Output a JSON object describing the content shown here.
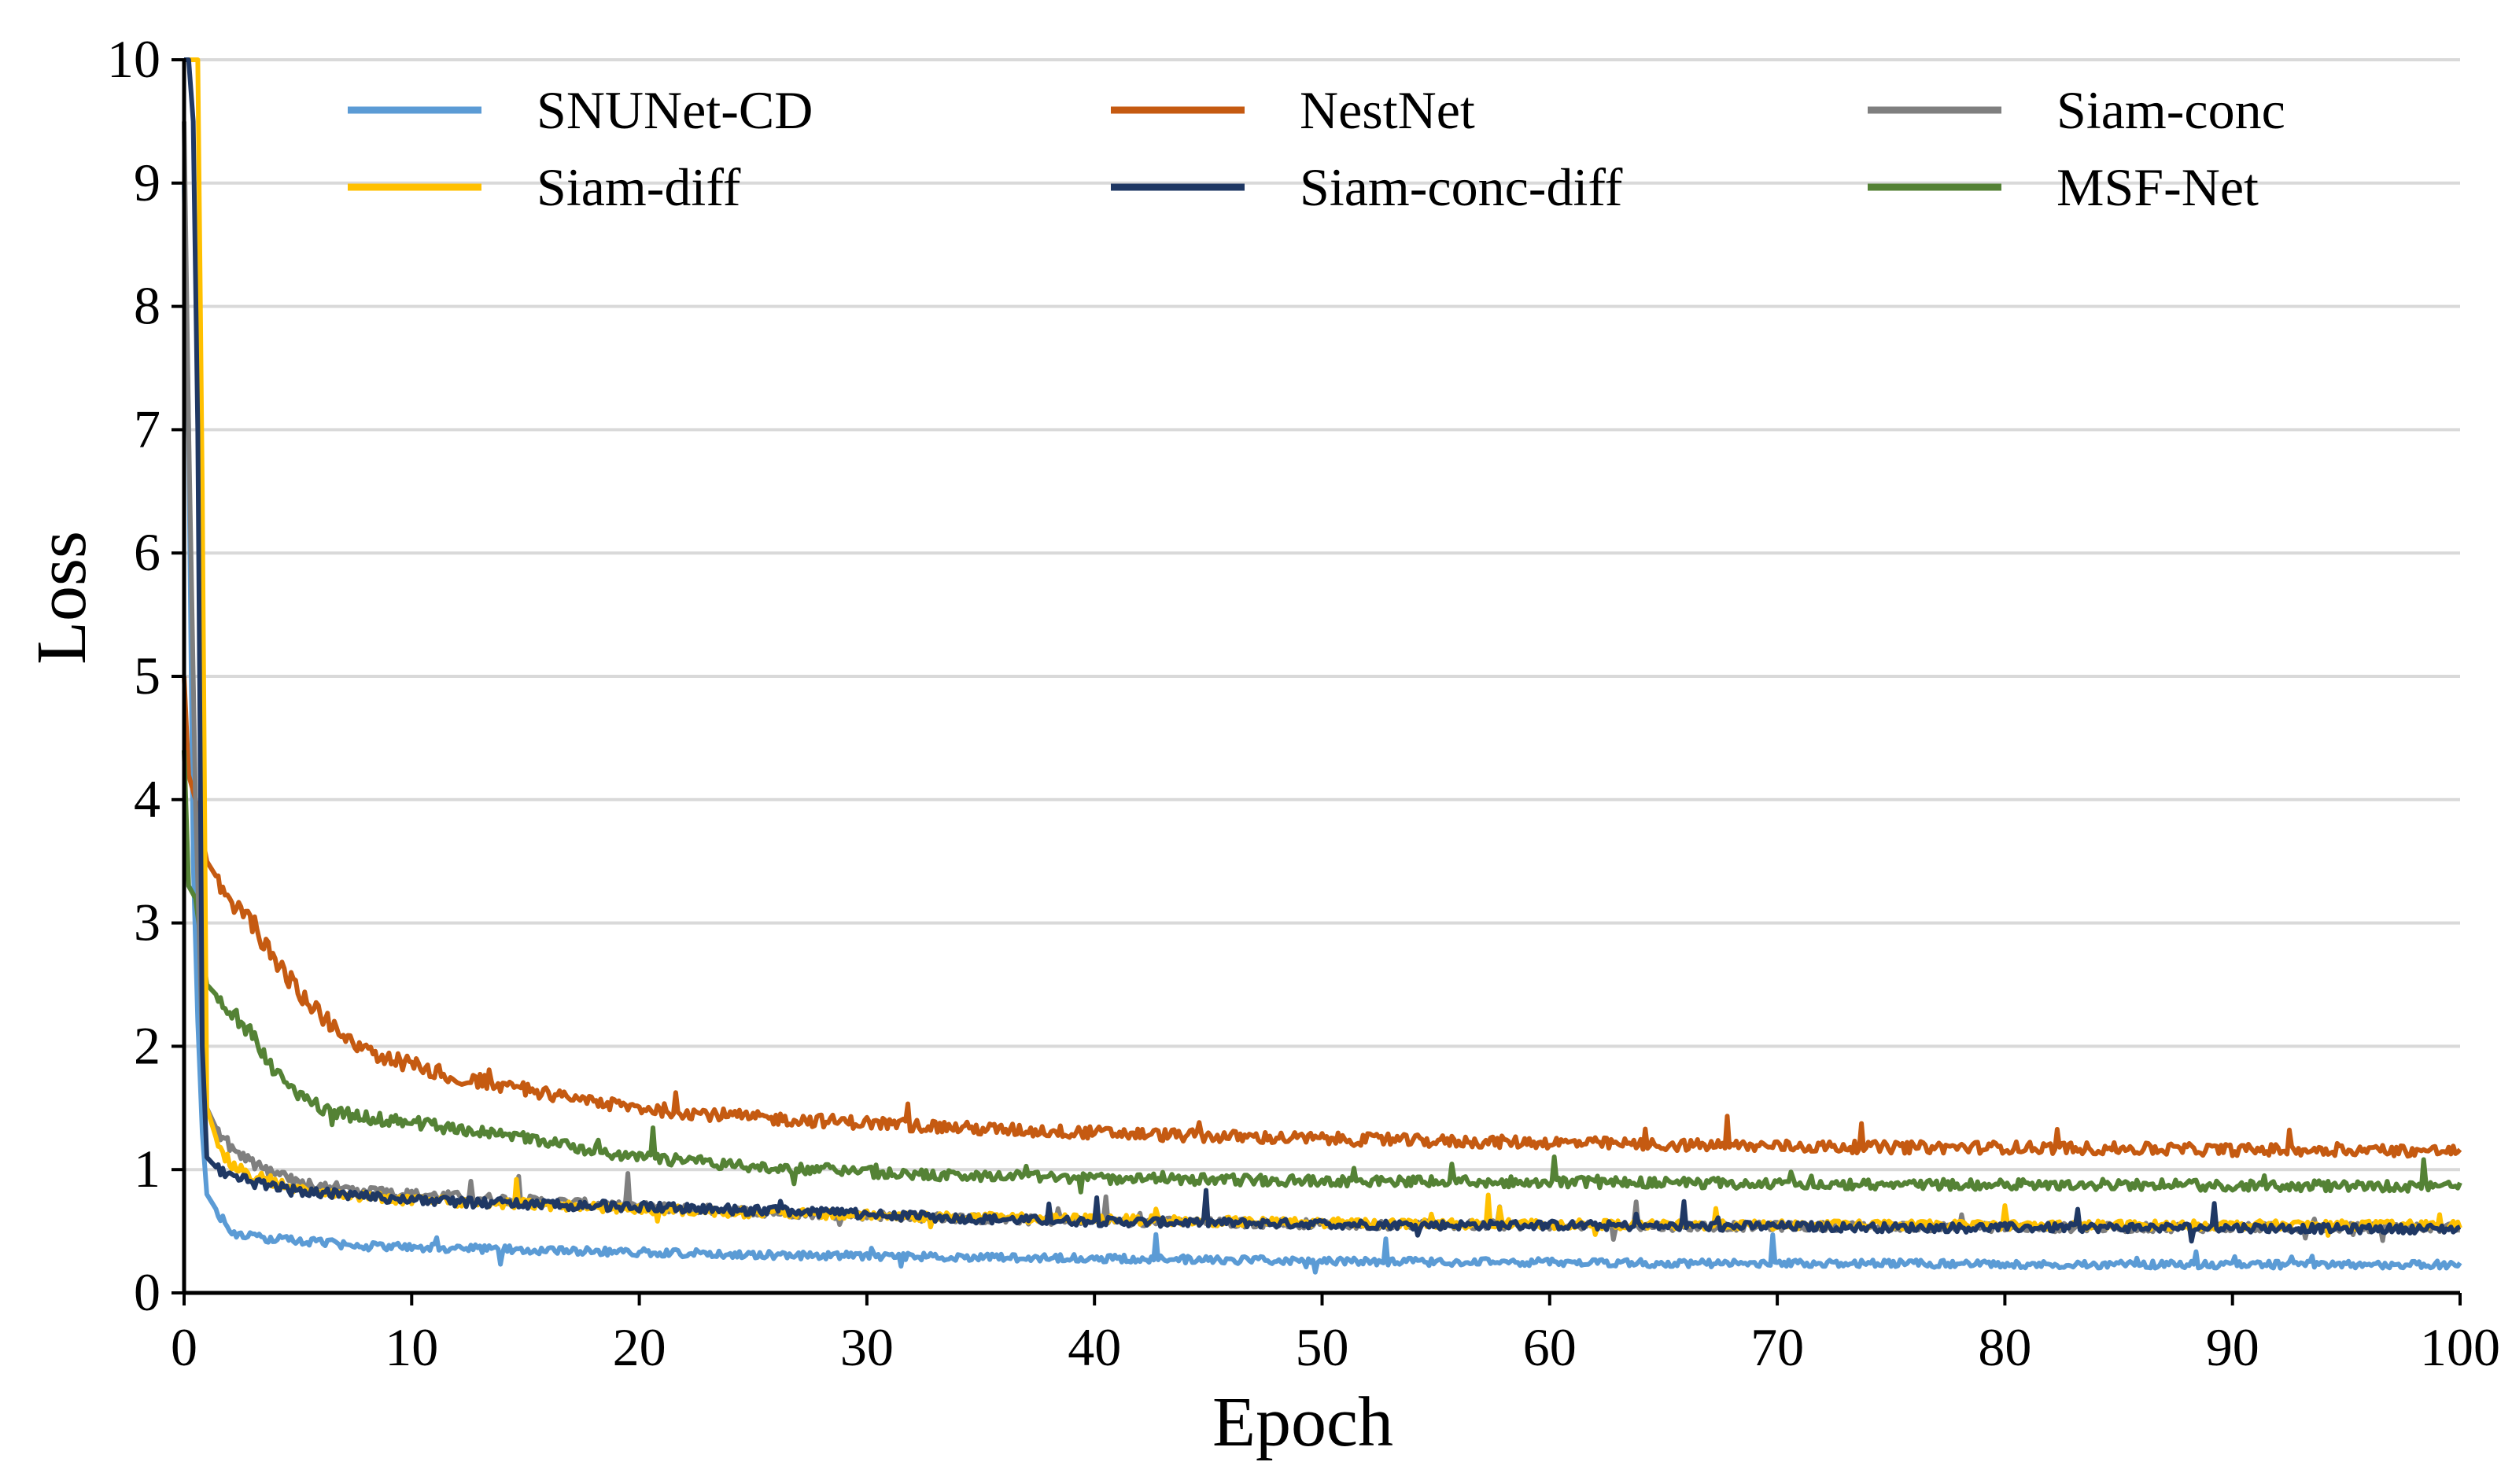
{
  "chart_data": {
    "type": "line",
    "title": "",
    "xlabel": "Epoch",
    "ylabel": "Loss",
    "xlim": [
      0,
      100
    ],
    "ylim": [
      0,
      10
    ],
    "xticks": [
      "0",
      "10",
      "20",
      "30",
      "40",
      "50",
      "60",
      "70",
      "80",
      "90",
      "100"
    ],
    "yticks": [
      "0",
      "1",
      "2",
      "3",
      "4",
      "5",
      "6",
      "7",
      "8",
      "9",
      "10"
    ],
    "grid": "horizontal",
    "legend_position": "top",
    "series": [
      {
        "name": "SNUNet-CD",
        "color": "#5B9BD5",
        "x": [
          0,
          0.2,
          0.4,
          0.6,
          0.8,
          1,
          2,
          3,
          5,
          8,
          10,
          15,
          20,
          25,
          30,
          35,
          40,
          45,
          50,
          55,
          60,
          65,
          70,
          75,
          80,
          85,
          90,
          95,
          100
        ],
        "y": [
          9.0,
          7.0,
          3.5,
          2.2,
          1.3,
          0.8,
          0.5,
          0.45,
          0.42,
          0.38,
          0.37,
          0.35,
          0.33,
          0.31,
          0.3,
          0.29,
          0.28,
          0.27,
          0.26,
          0.25,
          0.25,
          0.24,
          0.24,
          0.24,
          0.23,
          0.23,
          0.23,
          0.23,
          0.23
        ]
      },
      {
        "name": "NestNet",
        "color": "#C55A11",
        "x": [
          0,
          0.2,
          0.5,
          1,
          2,
          3,
          4,
          5,
          6,
          7,
          8,
          10,
          12,
          15,
          20,
          25,
          30,
          35,
          40,
          45,
          50,
          55,
          60,
          65,
          70,
          75,
          80,
          85,
          90,
          95,
          100
        ],
        "y": [
          5.0,
          4.2,
          4.0,
          3.5,
          3.2,
          3.0,
          2.7,
          2.45,
          2.25,
          2.1,
          1.95,
          1.85,
          1.75,
          1.65,
          1.5,
          1.42,
          1.38,
          1.33,
          1.3,
          1.27,
          1.25,
          1.23,
          1.22,
          1.2,
          1.19,
          1.18,
          1.18,
          1.17,
          1.16,
          1.16,
          1.15
        ]
      },
      {
        "name": "Siam-conc",
        "color": "#7F7F7F",
        "x": [
          0,
          0.2,
          0.5,
          0.8,
          1,
          1.5,
          2,
          3,
          5,
          8,
          10,
          15,
          20,
          25,
          30,
          35,
          40,
          45,
          50,
          55,
          60,
          65,
          70,
          75,
          80,
          85,
          90,
          95,
          100
        ],
        "y": [
          9.5,
          7.0,
          4.0,
          2.0,
          1.5,
          1.3,
          1.2,
          1.05,
          0.9,
          0.82,
          0.8,
          0.75,
          0.7,
          0.66,
          0.63,
          0.6,
          0.58,
          0.57,
          0.56,
          0.55,
          0.55,
          0.54,
          0.54,
          0.54,
          0.53,
          0.53,
          0.53,
          0.53,
          0.53
        ]
      },
      {
        "name": "Siam-diff",
        "color": "#FFC000",
        "x": [
          0,
          0.3,
          0.6,
          0.8,
          1,
          1.5,
          2,
          3,
          5,
          8,
          10,
          15,
          20,
          25,
          30,
          35,
          40,
          45,
          50,
          55,
          60,
          65,
          70,
          75,
          80,
          85,
          90,
          95,
          100
        ],
        "y": [
          10.0,
          10.0,
          10.0,
          6.5,
          1.5,
          1.2,
          1.05,
          0.95,
          0.85,
          0.78,
          0.75,
          0.72,
          0.68,
          0.65,
          0.63,
          0.61,
          0.6,
          0.58,
          0.57,
          0.56,
          0.56,
          0.55,
          0.55,
          0.55,
          0.55,
          0.55,
          0.55,
          0.55,
          0.55
        ]
      },
      {
        "name": "Siam-conc-diff",
        "color": "#1F3864",
        "x": [
          0,
          0.2,
          0.4,
          0.6,
          0.8,
          1,
          1.5,
          2,
          3,
          5,
          8,
          10,
          15,
          20,
          25,
          30,
          35,
          40,
          45,
          50,
          55,
          60,
          65,
          70,
          75,
          80,
          85,
          90,
          95,
          100
        ],
        "y": [
          10.0,
          10.0,
          9.5,
          7.0,
          2.0,
          1.1,
          1.0,
          0.95,
          0.9,
          0.82,
          0.78,
          0.75,
          0.72,
          0.7,
          0.67,
          0.64,
          0.6,
          0.58,
          0.57,
          0.56,
          0.55,
          0.55,
          0.54,
          0.54,
          0.53,
          0.53,
          0.53,
          0.53,
          0.52,
          0.52
        ]
      },
      {
        "name": "MSF-Net",
        "color": "#548235",
        "x": [
          0,
          0.2,
          0.5,
          1,
          2,
          3,
          4,
          5,
          6,
          7,
          8,
          10,
          15,
          20,
          25,
          30,
          35,
          40,
          45,
          50,
          55,
          60,
          65,
          70,
          75,
          80,
          85,
          90,
          95,
          100
        ],
        "y": [
          4.4,
          3.3,
          3.2,
          2.5,
          2.3,
          2.1,
          1.8,
          1.6,
          1.5,
          1.45,
          1.42,
          1.38,
          1.25,
          1.1,
          1.03,
          0.98,
          0.95,
          0.93,
          0.92,
          0.91,
          0.9,
          0.9,
          0.89,
          0.89,
          0.88,
          0.88,
          0.88,
          0.87,
          0.87,
          0.86
        ]
      }
    ]
  }
}
